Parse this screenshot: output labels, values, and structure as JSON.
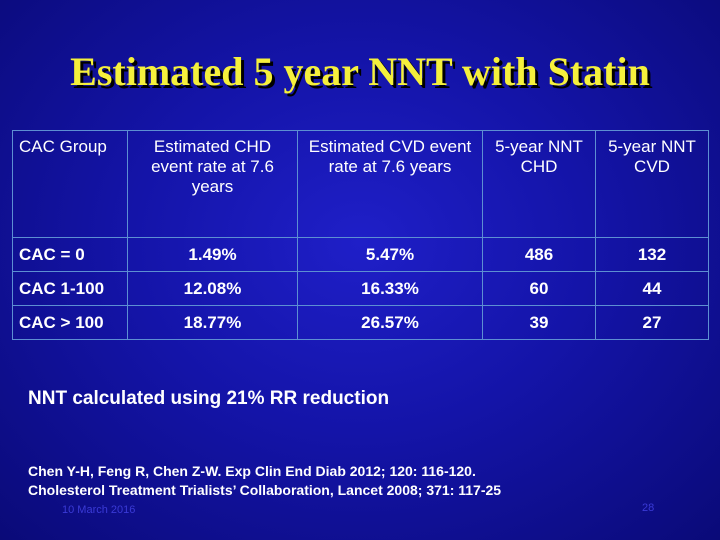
{
  "slide": {
    "title": "Estimated 5 year NNT with Statin",
    "table": {
      "headers": [
        "CAC Group",
        "Estimated CHD event rate at 7.6 years",
        "Estimated CVD event rate at 7.6 years",
        "5-year NNT CHD",
        "5-year NNT CVD"
      ],
      "rows": [
        [
          "CAC = 0",
          "1.49%",
          "5.47%",
          "486",
          "132"
        ],
        [
          "CAC 1-100",
          "12.08%",
          "16.33%",
          "60",
          "44"
        ],
        [
          "CAC > 100",
          "18.77%",
          "26.57%",
          "39",
          "27"
        ]
      ]
    },
    "note": "NNT calculated using 21% RR reduction",
    "references": [
      "Chen Y-H, Feng R, Chen Z-W. Exp Clin End Diab 2012; 120: 116-120.",
      "Cholesterol Treatment Trialists’ Collaboration, Lancet 2008; 371: 117-25"
    ],
    "footer_date": "10 March 2016",
    "slide_number": "28"
  },
  "colors": {
    "title": "#f5f03c",
    "background": "#1414a8",
    "grid": "#5d8fd2",
    "text": "#ffffff"
  }
}
